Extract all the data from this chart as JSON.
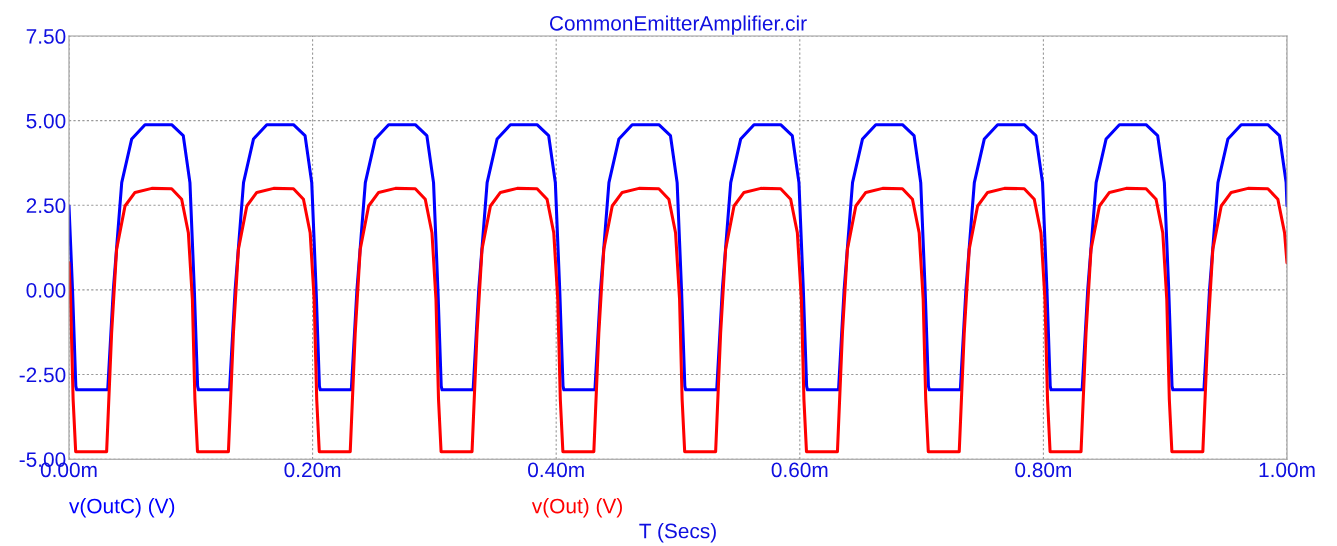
{
  "chart_data": {
    "type": "line",
    "title": "CommonEmitterAmplifier.cir",
    "xlabel": "T (Secs)",
    "xlim": [
      0,
      1
    ],
    "ylim": [
      -5,
      7.5
    ],
    "xticks": [
      {
        "value": 0,
        "label": "0.00m"
      },
      {
        "value": 0.2,
        "label": "0.20m"
      },
      {
        "value": 0.4,
        "label": "0.40m"
      },
      {
        "value": 0.6,
        "label": "0.60m"
      },
      {
        "value": 0.8,
        "label": "0.80m"
      },
      {
        "value": 1,
        "label": "1.00m"
      }
    ],
    "yticks": [
      {
        "value": -5,
        "label": "-5.00"
      },
      {
        "value": -2.5,
        "label": "-2.50"
      },
      {
        "value": 0,
        "label": "0.00"
      },
      {
        "value": 2.5,
        "label": "2.50"
      },
      {
        "value": 5,
        "label": "5.00"
      },
      {
        "value": 7.5,
        "label": "7.50"
      }
    ],
    "grid": true,
    "legend": "bottom",
    "marker": "none",
    "line_style": "solid",
    "series": [
      {
        "name": "v(OutC) (V)",
        "color": "#0000ff",
        "x": [
          0,
          0.0029,
          0.0056,
          0.0063,
          0.0318,
          0.0364,
          0.0433,
          0.0515,
          0.0624,
          0.0843,
          0.0938,
          0.0993,
          0.1029,
          0.1056,
          0.1063,
          0.1318,
          0.1364,
          0.1433,
          0.1515,
          0.1624,
          0.1843,
          0.1938,
          0.1993,
          0.2029,
          0.2056,
          0.2063,
          0.2318,
          0.2364,
          0.2433,
          0.2515,
          0.2624,
          0.2843,
          0.2938,
          0.2993,
          0.3029,
          0.3056,
          0.3063,
          0.3318,
          0.3364,
          0.3433,
          0.3515,
          0.3624,
          0.3843,
          0.3938,
          0.3993,
          0.4029,
          0.4056,
          0.4063,
          0.4318,
          0.4364,
          0.4433,
          0.4515,
          0.4624,
          0.4843,
          0.4938,
          0.4993,
          0.5029,
          0.5056,
          0.5063,
          0.5318,
          0.5364,
          0.5433,
          0.5515,
          0.5624,
          0.5843,
          0.5938,
          0.5993,
          0.6029,
          0.6056,
          0.6063,
          0.6318,
          0.6364,
          0.6433,
          0.6515,
          0.6624,
          0.6843,
          0.6938,
          0.6993,
          0.7029,
          0.7056,
          0.7063,
          0.7318,
          0.7364,
          0.7433,
          0.7515,
          0.7624,
          0.7843,
          0.7938,
          0.7993,
          0.8029,
          0.8056,
          0.8063,
          0.8318,
          0.8364,
          0.8433,
          0.8515,
          0.8624,
          0.8843,
          0.8938,
          0.8993,
          0.9029,
          0.9056,
          0.9063,
          0.9318,
          0.9364,
          0.9433,
          0.9515,
          0.9624,
          0.9843,
          0.9938,
          0.9993,
          1.0
        ],
        "values": [
          2.48,
          0,
          -2.84,
          -2.95,
          -2.95,
          0,
          3.17,
          4.46,
          4.88,
          4.88,
          4.56,
          3.17,
          0,
          -2.84,
          -2.95,
          -2.95,
          0,
          3.17,
          4.46,
          4.88,
          4.88,
          4.56,
          3.17,
          0,
          -2.84,
          -2.95,
          -2.95,
          0,
          3.17,
          4.46,
          4.88,
          4.88,
          4.56,
          3.17,
          0,
          -2.84,
          -2.95,
          -2.95,
          0,
          3.17,
          4.46,
          4.88,
          4.88,
          4.56,
          3.17,
          0,
          -2.84,
          -2.95,
          -2.95,
          0,
          3.17,
          4.46,
          4.88,
          4.88,
          4.56,
          3.17,
          0,
          -2.84,
          -2.95,
          -2.95,
          0,
          3.17,
          4.46,
          4.88,
          4.88,
          4.56,
          3.17,
          0,
          -2.84,
          -2.95,
          -2.95,
          0,
          3.17,
          4.46,
          4.88,
          4.88,
          4.56,
          3.17,
          0,
          -2.84,
          -2.95,
          -2.95,
          0,
          3.17,
          4.46,
          4.88,
          4.88,
          4.56,
          3.17,
          0,
          -2.84,
          -2.95,
          -2.95,
          0,
          3.17,
          4.46,
          4.88,
          4.88,
          4.56,
          3.17,
          0,
          -2.84,
          -2.95,
          -2.95,
          0,
          3.17,
          4.46,
          4.88,
          4.88,
          4.56,
          3.17,
          2.48
        ]
      },
      {
        "name": "v(Out) (V)",
        "color": "#ff0000",
        "x": [
          0,
          0.0013,
          0.0034,
          0.0055,
          0.0309,
          0.035,
          0.0391,
          0.046,
          0.0542,
          0.068,
          0.0843,
          0.0925,
          0.098,
          0.1013,
          0.1034,
          0.1055,
          0.1309,
          0.135,
          0.1391,
          0.146,
          0.1542,
          0.168,
          0.1843,
          0.1925,
          0.198,
          0.2013,
          0.2034,
          0.2055,
          0.2309,
          0.235,
          0.2391,
          0.246,
          0.2542,
          0.268,
          0.2843,
          0.2925,
          0.298,
          0.3013,
          0.3034,
          0.3055,
          0.3309,
          0.335,
          0.3391,
          0.346,
          0.3542,
          0.368,
          0.3843,
          0.3925,
          0.398,
          0.4013,
          0.4034,
          0.4055,
          0.4309,
          0.435,
          0.4391,
          0.446,
          0.4542,
          0.468,
          0.4843,
          0.4925,
          0.498,
          0.5013,
          0.5034,
          0.5055,
          0.5309,
          0.535,
          0.5391,
          0.546,
          0.5542,
          0.568,
          0.5843,
          0.5925,
          0.598,
          0.6013,
          0.6034,
          0.6055,
          0.6309,
          0.635,
          0.6391,
          0.646,
          0.6542,
          0.668,
          0.6843,
          0.6925,
          0.698,
          0.7013,
          0.7034,
          0.7055,
          0.7309,
          0.735,
          0.7391,
          0.746,
          0.7542,
          0.768,
          0.7843,
          0.7925,
          0.798,
          0.8013,
          0.8034,
          0.8055,
          0.8309,
          0.835,
          0.8391,
          0.846,
          0.8542,
          0.868,
          0.8843,
          0.8925,
          0.898,
          0.9013,
          0.9034,
          0.9055,
          0.9309,
          0.935,
          0.9391,
          0.946,
          0.9542,
          0.968,
          0.9843,
          0.9925,
          0.998,
          1.0
        ],
        "values": [
          0.8,
          -0.28,
          -3.24,
          -4.78,
          -4.78,
          -1.27,
          1.2,
          2.48,
          2.88,
          3.0,
          2.99,
          2.68,
          1.69,
          -0.28,
          -3.24,
          -4.78,
          -4.78,
          -1.27,
          1.2,
          2.48,
          2.88,
          3.0,
          2.99,
          2.68,
          1.69,
          -0.28,
          -3.24,
          -4.78,
          -4.78,
          -1.27,
          1.2,
          2.48,
          2.88,
          3.0,
          2.99,
          2.68,
          1.69,
          -0.28,
          -3.24,
          -4.78,
          -4.78,
          -1.27,
          1.2,
          2.48,
          2.88,
          3.0,
          2.99,
          2.68,
          1.69,
          -0.28,
          -3.24,
          -4.78,
          -4.78,
          -1.27,
          1.2,
          2.48,
          2.88,
          3.0,
          2.99,
          2.68,
          1.69,
          -0.28,
          -3.24,
          -4.78,
          -4.78,
          -1.27,
          1.2,
          2.48,
          2.88,
          3.0,
          2.99,
          2.68,
          1.69,
          -0.28,
          -3.24,
          -4.78,
          -4.78,
          -1.27,
          1.2,
          2.48,
          2.88,
          3.0,
          2.99,
          2.68,
          1.69,
          -0.28,
          -3.24,
          -4.78,
          -4.78,
          -1.27,
          1.2,
          2.48,
          2.88,
          3.0,
          2.99,
          2.68,
          1.69,
          -0.28,
          -3.24,
          -4.78,
          -4.78,
          -1.27,
          1.2,
          2.48,
          2.88,
          3.0,
          2.99,
          2.68,
          1.69,
          -0.28,
          -3.24,
          -4.78,
          -4.78,
          -1.27,
          1.2,
          2.48,
          2.88,
          3.0,
          2.99,
          2.68,
          1.69,
          0.8
        ]
      }
    ]
  }
}
